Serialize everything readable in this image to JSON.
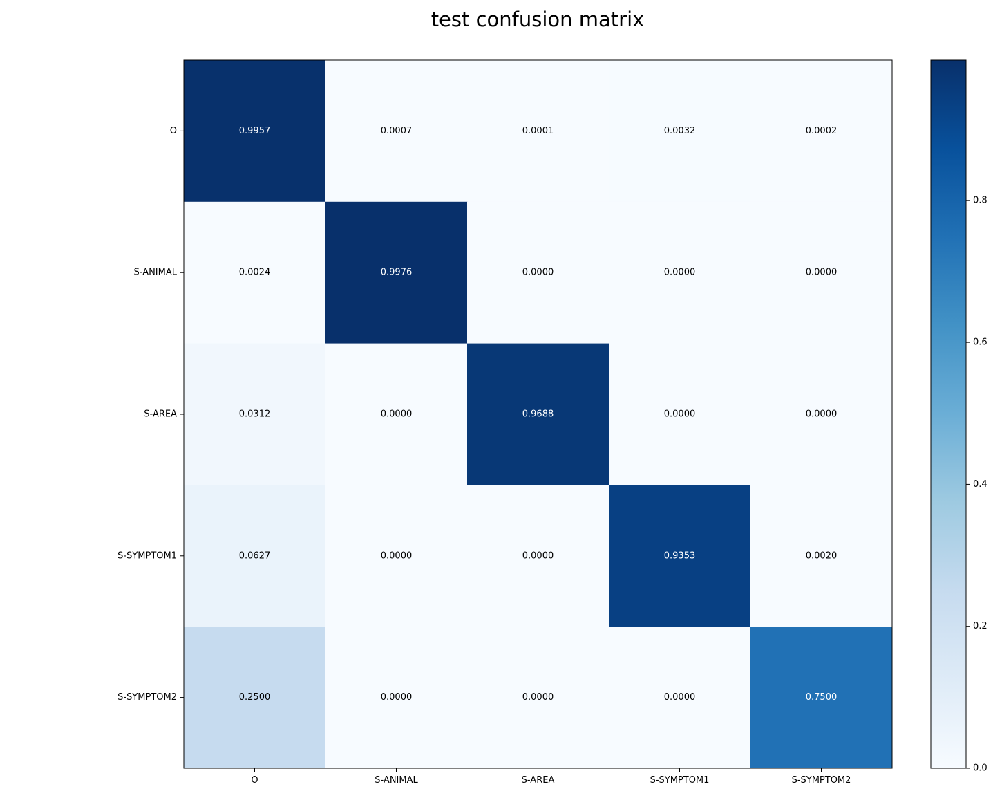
{
  "chart_data": {
    "type": "heatmap",
    "title": "test confusion matrix",
    "xlabel": "",
    "ylabel": "",
    "row_labels": [
      "O",
      "S-ANIMAL",
      "S-AREA",
      "S-SYMPTOM1",
      "S-SYMPTOM2"
    ],
    "col_labels": [
      "O",
      "S-ANIMAL",
      "S-AREA",
      "S-SYMPTOM1",
      "S-SYMPTOM2"
    ],
    "values": [
      [
        0.9957,
        0.0007,
        0.0001,
        0.0032,
        0.0002
      ],
      [
        0.0024,
        0.9976,
        0.0,
        0.0,
        0.0
      ],
      [
        0.0312,
        0.0,
        0.9688,
        0.0,
        0.0
      ],
      [
        0.0627,
        0.0,
        0.0,
        0.9353,
        0.002
      ],
      [
        0.25,
        0.0,
        0.0,
        0.0,
        0.75
      ]
    ],
    "cell_labels": [
      [
        "0.9957",
        "0.0007",
        "0.0001",
        "0.0032",
        "0.0002"
      ],
      [
        "0.0024",
        "0.9976",
        "0.0000",
        "0.0000",
        "0.0000"
      ],
      [
        "0.0312",
        "0.0000",
        "0.9688",
        "0.0000",
        "0.0000"
      ],
      [
        "0.0627",
        "0.0000",
        "0.0000",
        "0.9353",
        "0.0020"
      ],
      [
        "0.2500",
        "0.0000",
        "0.0000",
        "0.0000",
        "0.7500"
      ]
    ],
    "colormap": "Blues",
    "color_range": [
      0.0,
      0.9976
    ],
    "colorbar": {
      "ticks": [
        0.0,
        0.2,
        0.4,
        0.6,
        0.8
      ],
      "tick_labels": [
        "0.0",
        "0.2",
        "0.4",
        "0.6",
        "0.8"
      ]
    },
    "colors": {
      "low": "#f7fbff",
      "high": "#08306b",
      "text_light": "#ffffff",
      "text_dark": "#000000"
    },
    "grid": false,
    "legend": "none"
  }
}
